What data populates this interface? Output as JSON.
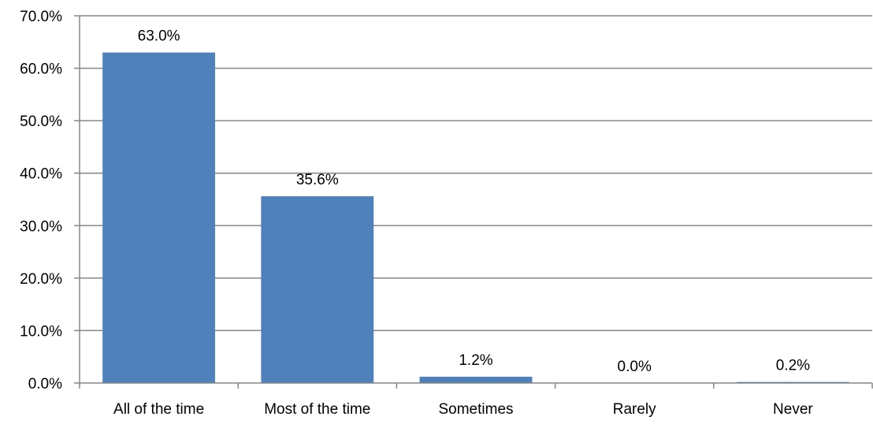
{
  "chart_data": {
    "type": "bar",
    "categories": [
      "All of the time",
      "Most of the time",
      "Sometimes",
      "Rarely",
      "Never"
    ],
    "values": [
      63.0,
      35.6,
      1.2,
      0.0,
      0.2
    ],
    "data_labels": [
      "63.0%",
      "35.6%",
      "1.2%",
      "0.0%",
      "0.2%"
    ],
    "title": "",
    "xlabel": "",
    "ylabel": "",
    "ylim": [
      0,
      70
    ],
    "yticks": [
      0,
      10,
      20,
      30,
      40,
      50,
      60,
      70
    ],
    "ytick_labels": [
      "0.0%",
      "10.0%",
      "20.0%",
      "30.0%",
      "40.0%",
      "50.0%",
      "60.0%",
      "70.0%"
    ],
    "grid": true,
    "legend": "none",
    "bar_color": "#4F81BD",
    "grid_color": "#868686"
  }
}
